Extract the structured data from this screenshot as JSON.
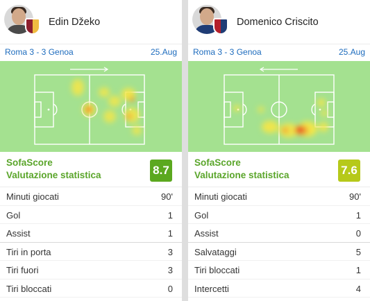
{
  "left": {
    "player_name": "Edin Džeko",
    "match": "Roma 3 - 3 Genoa",
    "date": "25.Aug",
    "rating_title": "SofaScore",
    "rating_subtitle": "Valutazione statistica",
    "rating": "8.7",
    "rating_color": "#5ba81f",
    "direction": "right",
    "club_colors": [
      "#8e1f2f",
      "#f0bc42"
    ],
    "stats": [
      {
        "label": "Minuti giocati",
        "value": "90'"
      },
      {
        "label": "Gol",
        "value": "1"
      },
      {
        "label": "Assist",
        "value": "1"
      },
      {
        "label": "Tiri in porta",
        "value": "3"
      },
      {
        "label": "Tiri fuori",
        "value": "3"
      },
      {
        "label": "Tiri bloccati",
        "value": "0"
      }
    ]
  },
  "right": {
    "player_name": "Domenico Criscito",
    "match": "Roma 3 - 3 Genoa",
    "date": "25.Aug",
    "rating_title": "SofaScore",
    "rating_subtitle": "Valutazione statistica",
    "rating": "7.6",
    "rating_color": "#b6c91a",
    "direction": "left",
    "club_colors": [
      "#b41f2b",
      "#1f3c75"
    ],
    "stats": [
      {
        "label": "Minuti giocati",
        "value": "90'"
      },
      {
        "label": "Gol",
        "value": "1"
      },
      {
        "label": "Assist",
        "value": "0"
      },
      {
        "label": "Salvataggi",
        "value": "5"
      },
      {
        "label": "Tiri bloccati",
        "value": "1"
      },
      {
        "label": "Intercetti",
        "value": "4"
      }
    ]
  }
}
